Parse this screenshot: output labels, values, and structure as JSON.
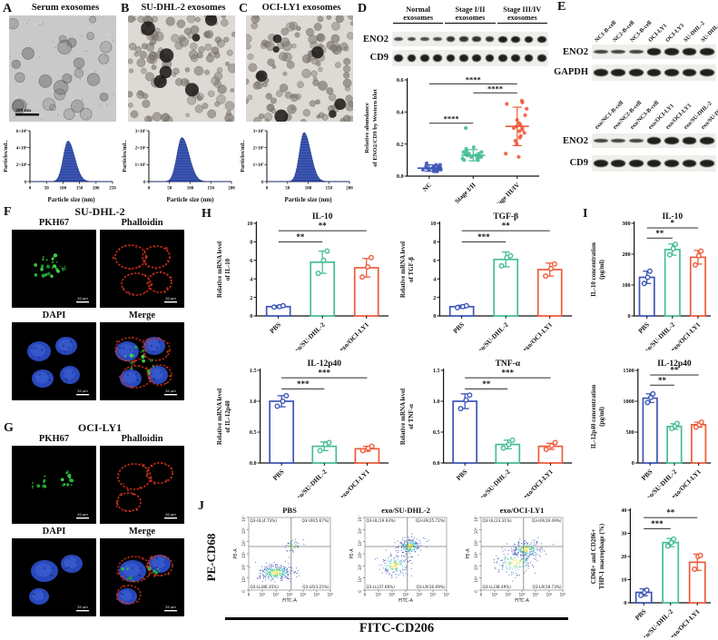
{
  "panels": {
    "A": {
      "letter": "A",
      "title": "Serum exosomes",
      "scale_bar": "200 nm"
    },
    "B": {
      "letter": "B",
      "title": "SU-DHL-2 exosomes"
    },
    "C": {
      "letter": "C",
      "title": "OCI-LY1 exosomes"
    },
    "D": {
      "letter": "D"
    },
    "E": {
      "letter": "E"
    },
    "F": {
      "letter": "F",
      "title": "SU-DHL-2",
      "image_labels": [
        "PKH67",
        "Phalloidin",
        "DAPI",
        "Merge"
      ],
      "scale_bar": "20 μm"
    },
    "G": {
      "letter": "G",
      "title": "OCI-LY1",
      "image_labels": [
        "PKH67",
        "Phalloidin",
        "DAPI",
        "Merge"
      ],
      "scale_bar": "20 μm"
    },
    "H": {
      "letter": "H"
    },
    "I": {
      "letter": "I"
    },
    "J": {
      "letter": "J"
    }
  },
  "westerns": {
    "d": {
      "groups": [
        {
          "line1": "Normal",
          "line2": "exosomes"
        },
        {
          "line1": "Stage I/II",
          "line2": "exosomes"
        },
        {
          "line1": "Stage III/IV",
          "line2": "exosomes"
        }
      ],
      "rows": [
        {
          "label": "ENO2",
          "lanes": 12,
          "profile": "d_eno2"
        },
        {
          "label": "CD9",
          "lanes": 12,
          "profile": "uniform"
        }
      ]
    },
    "e_top": {
      "lanes": [
        "NC1-B-cell",
        "NC2-B-cell",
        "NC3-B-cell",
        "OCI-LY1",
        "OCI-LY3",
        "SU-DHL-2",
        "SU-DHL-4"
      ],
      "rows": [
        {
          "label": "ENO2",
          "profile": "weak3strong4"
        },
        {
          "label": "GAPDH",
          "profile": "uniform"
        }
      ]
    },
    "e_bottom": {
      "lanes": [
        "exo/NC1-B-cell",
        "exo/NC2-B-cell",
        "exo/NC3-B-cell",
        "exo/OCI-LY1",
        "exo/OCI-LY3",
        "exo/SU-DHL-2",
        "exo/SU-DHL-4"
      ],
      "rows": [
        {
          "label": "ENO2",
          "profile": "weak3strong4"
        },
        {
          "label": "CD9",
          "profile": "uniform"
        }
      ]
    }
  },
  "colors": {
    "series": [
      "#3D55B8",
      "#45BE92",
      "#EE5B3A"
    ],
    "hist_blue": "#2B46A6",
    "sig_line": "#444444"
  },
  "j_labels": {
    "ylabel": "PE-CD68",
    "xlabel": "FITC-CD206"
  },
  "chart_data": [
    {
      "id": "hist_serum",
      "type": "area",
      "xlabel": "Particle size (nm)",
      "ylabel": "Particles/mL.",
      "xlim": [
        0,
        250
      ],
      "xticks": [
        "0",
        "50",
        "100",
        "150",
        "200",
        "250"
      ],
      "yticks": [
        "0",
        "2×10⁶",
        "4×10⁶",
        "6×10⁶"
      ],
      "peak_x": 115,
      "sigma": 14,
      "peak_frac": 0.8
    },
    {
      "id": "hist_sudhl2",
      "type": "area",
      "xlabel": "Particle size (nm)",
      "ylabel": "Particles/mL.",
      "xlim": [
        0,
        200
      ],
      "xticks": [
        "0",
        "50",
        "100",
        "150",
        "200"
      ],
      "yticks": [
        "0",
        "1×10⁷",
        "2×10⁷",
        "3×10⁷"
      ],
      "peak_x": 80,
      "sigma": 12,
      "peak_frac": 0.87
    },
    {
      "id": "hist_ocily1",
      "type": "area",
      "xlabel": "Particle size (nm)",
      "ylabel": "Particles/mL.",
      "xlim": [
        0,
        200
      ],
      "xticks": [
        "0",
        "50",
        "100",
        "150",
        "200"
      ],
      "yticks": [
        "0",
        "1×10⁷",
        "2×10⁷",
        "3×10⁷"
      ],
      "peak_x": 90,
      "sigma": 11,
      "peak_frac": 0.97
    },
    {
      "id": "d_scatter",
      "type": "scatter",
      "ylabel": [
        "Relative abundance",
        "of ENO2/CD9 by Western blot"
      ],
      "ylim": [
        0,
        0.6
      ],
      "yticks": [
        "0.0",
        "0.2",
        "0.4",
        "0.6"
      ],
      "categories": [
        "NC",
        "Stage I/II",
        "Stage III/IV"
      ],
      "means": [
        0.05,
        0.13,
        0.31
      ],
      "sds": [
        0.02,
        0.035,
        0.12
      ],
      "points": [
        [
          0.03,
          0.05,
          0.04,
          0.06,
          0.03,
          0.05,
          0.07,
          0.04,
          0.05,
          0.06,
          0.03,
          0.04,
          0.05,
          0.08,
          0.04,
          0.06,
          0.05,
          0.04,
          0.07,
          0.05
        ],
        [
          0.1,
          0.12,
          0.14,
          0.11,
          0.13,
          0.15,
          0.12,
          0.16,
          0.18,
          0.11,
          0.17,
          0.12,
          0.14,
          0.13,
          0.3,
          0.12,
          0.15,
          0.13,
          0.1,
          0.14
        ],
        [
          0.12,
          0.14,
          0.2,
          0.22,
          0.25,
          0.27,
          0.28,
          0.3,
          0.3,
          0.31,
          0.32,
          0.33,
          0.35,
          0.38,
          0.42,
          0.45,
          0.46,
          0.47,
          0.24,
          0.29
        ]
      ],
      "sigs": [
        {
          "a": 0,
          "b": 1,
          "label": "****",
          "h": 0.55
        },
        {
          "a": 1,
          "b": 2,
          "label": "****",
          "h": 0.865
        },
        {
          "a": 0,
          "b": 2,
          "label": "****",
          "h": 0.958
        }
      ]
    },
    {
      "id": "h_il10",
      "type": "bar",
      "title": "IL-10",
      "ylabel": [
        "Relative mRNA level",
        "of IL-10"
      ],
      "ylim": [
        0,
        10
      ],
      "yticks": [
        "0",
        "2",
        "4",
        "6",
        "8",
        "10"
      ],
      "categories": [
        "PBS",
        "exo/SU-DHL-2",
        "exo/OCI-LY1"
      ],
      "values": [
        1.0,
        5.8,
        5.2
      ],
      "errors": [
        0.12,
        1.2,
        1.0
      ],
      "points": [
        [
          0.95,
          1.0,
          1.1
        ],
        [
          4.6,
          6.0,
          7.0
        ],
        [
          4.2,
          5.3,
          6.3
        ]
      ],
      "sigs": [
        {
          "a": 0,
          "b": 1,
          "label": "**",
          "h": 0.8
        },
        {
          "a": 0,
          "b": 2,
          "label": "**",
          "h": 0.92
        }
      ]
    },
    {
      "id": "h_tgfb",
      "type": "bar",
      "title": "TGF-β",
      "ylabel": [
        "Relative mRNA level",
        "of TGF-β"
      ],
      "ylim": [
        0,
        10
      ],
      "yticks": [
        "0",
        "2",
        "4",
        "6",
        "8",
        "10"
      ],
      "categories": [
        "PBS",
        "exo/SU-DHL-2",
        "exo/OCI-LY1"
      ],
      "values": [
        1.0,
        6.1,
        5.0
      ],
      "errors": [
        0.15,
        0.8,
        0.7
      ],
      "points": [
        [
          0.9,
          1.0,
          1.1
        ],
        [
          5.4,
          6.3,
          6.5
        ],
        [
          4.3,
          5.1,
          5.6
        ]
      ],
      "sigs": [
        {
          "a": 0,
          "b": 1,
          "label": "***",
          "h": 0.8
        },
        {
          "a": 0,
          "b": 2,
          "label": "**",
          "h": 0.92
        }
      ]
    },
    {
      "id": "h_il12",
      "type": "bar",
      "title": "IL-12p40",
      "ylabel": [
        "Relative mRNA level",
        "of IL-12p40"
      ],
      "ylim": [
        0,
        1.5
      ],
      "yticks": [
        "0.0",
        "0.5",
        "1.0",
        "1.5"
      ],
      "categories": [
        "PBS",
        "exo/SU-DHL-2",
        "exo/OCI-LY1"
      ],
      "values": [
        1.0,
        0.27,
        0.23
      ],
      "errors": [
        0.09,
        0.07,
        0.04
      ],
      "points": [
        [
          0.92,
          1.0,
          1.09
        ],
        [
          0.2,
          0.3,
          0.33
        ],
        [
          0.2,
          0.24,
          0.27
        ]
      ],
      "sigs": [
        {
          "a": 0,
          "b": 1,
          "label": "***",
          "h": 0.8
        },
        {
          "a": 0,
          "b": 2,
          "label": "***",
          "h": 0.92
        }
      ]
    },
    {
      "id": "h_tnfa",
      "type": "bar",
      "title": "TNF-α",
      "ylabel": [
        "Relative mRNA level",
        "of TNF-α"
      ],
      "ylim": [
        0,
        1.5
      ],
      "yticks": [
        "0.0",
        "0.5",
        "1.0",
        "1.5"
      ],
      "categories": [
        "PBS",
        "exo/SU-DHL-2",
        "exo/OCI-LY1"
      ],
      "values": [
        1.0,
        0.3,
        0.27
      ],
      "errors": [
        0.12,
        0.07,
        0.05
      ],
      "points": [
        [
          0.88,
          1.02,
          1.1
        ],
        [
          0.24,
          0.3,
          0.37
        ],
        [
          0.22,
          0.28,
          0.33
        ]
      ],
      "sigs": [
        {
          "a": 0,
          "b": 1,
          "label": "**",
          "h": 0.8
        },
        {
          "a": 0,
          "b": 2,
          "label": "***",
          "h": 0.92
        }
      ]
    },
    {
      "id": "i_il10",
      "type": "bar",
      "title": "IL-10",
      "ylabel": [
        "IL-10 concentration",
        "(pg/ml)"
      ],
      "ylim": [
        0,
        300
      ],
      "yticks": [
        "0",
        "100",
        "200",
        "300"
      ],
      "categories": [
        "PBS",
        "exo/SU-DHL-2",
        "exo/OCI-LY1"
      ],
      "values": [
        125,
        215,
        190
      ],
      "errors": [
        20,
        18,
        22
      ],
      "points": [
        [
          105,
          125,
          145
        ],
        [
          198,
          218,
          232
        ],
        [
          165,
          195,
          210
        ]
      ],
      "sigs": [
        {
          "a": 0,
          "b": 1,
          "label": "**",
          "h": 0.84
        },
        {
          "a": 0,
          "b": 2,
          "label": "*",
          "h": 0.95
        }
      ]
    },
    {
      "id": "i_il12",
      "type": "bar",
      "title": "IL-12p40",
      "ylabel": [
        "IL-12p40 concentration",
        "(pg/ml)"
      ],
      "ylim": [
        0,
        1500
      ],
      "yticks": [
        "0",
        "500",
        "1000",
        "1500"
      ],
      "categories": [
        "PBS",
        "exo/SU-DHL-2",
        "exo/OCI-LY1"
      ],
      "values": [
        1050,
        590,
        620
      ],
      "errors": [
        70,
        45,
        40
      ],
      "points": [
        [
          980,
          1060,
          1120
        ],
        [
          560,
          600,
          640
        ],
        [
          580,
          620,
          660
        ]
      ],
      "sigs": [
        {
          "a": 0,
          "b": 1,
          "label": "**",
          "h": 0.84
        },
        {
          "a": 0,
          "b": 2,
          "label": "**",
          "h": 0.95
        }
      ]
    },
    {
      "id": "j_bar",
      "type": "bar",
      "title": "",
      "ylabel": [
        "CD68+ and CD206+",
        "THP-1 macrophage (%)"
      ],
      "ylim": [
        0,
        40
      ],
      "yticks": [
        "0",
        "10",
        "20",
        "30",
        "40"
      ],
      "categories": [
        "PBS",
        "exo/SU-DHL-2",
        "exo/OCI-LY1"
      ],
      "values": [
        4.5,
        26,
        17.5
      ],
      "errors": [
        1.5,
        1.8,
        3.5
      ],
      "points": [
        [
          3.2,
          4.5,
          5.5
        ],
        [
          24.5,
          26,
          27.5
        ],
        [
          14.5,
          20,
          20.5
        ]
      ],
      "sigs": [
        {
          "a": 0,
          "b": 1,
          "label": "***",
          "h": 0.8
        },
        {
          "a": 0,
          "b": 2,
          "label": "**",
          "h": 0.92
        }
      ]
    },
    {
      "id": "flow_pbs",
      "type": "flow",
      "title": "PBS",
      "quadrants": {
        "ul": "Q3-UL(4.73%)",
        "ur": "Q3-UR(5.67%)",
        "ll": "Q3-LL(86.35%)",
        "lr": "Q3-LR(3.25%)"
      },
      "yaxis": "PE-A",
      "xaxis": "FITC-A",
      "ticks": [
        "0",
        "10²",
        "10³",
        "10⁴",
        "10⁵",
        "10⁶",
        "10⁷"
      ],
      "clusters": [
        {
          "cx": 0.33,
          "cy": 0.76,
          "sx": 0.11,
          "sy": 0.055,
          "n": 300
        },
        {
          "cx": 0.54,
          "cy": 0.4,
          "sx": 0.045,
          "sy": 0.045,
          "n": 55
        }
      ]
    },
    {
      "id": "flow_sudhl2",
      "type": "flow",
      "title": "exo/SU-DHL-2",
      "quadrants": {
        "ul": "Q3-UL(19.93%)",
        "ur": "Q3-UR(25.72%)",
        "ll": "Q3-LL(37.66%)",
        "lr": "Q3-LR(16.69%)"
      },
      "yaxis": "PE-A",
      "xaxis": "FITC-A",
      "ticks": [
        "0",
        "10²",
        "10³",
        "10⁴",
        "10⁵",
        "10⁶",
        "10⁷"
      ],
      "clusters": [
        {
          "cx": 0.55,
          "cy": 0.4,
          "sx": 0.07,
          "sy": 0.055,
          "n": 230
        },
        {
          "cx": 0.36,
          "cy": 0.66,
          "sx": 0.09,
          "sy": 0.07,
          "n": 160
        }
      ]
    },
    {
      "id": "flow_ocily1",
      "type": "flow",
      "title": "exo/OCI-LY1",
      "quadrants": {
        "ul": "Q3-UL(23.31%)",
        "ur": "Q3-UR(19.49%)",
        "ll": "Q3-LL(38.49%)",
        "lr": "Q3-LR(18.73%)"
      },
      "yaxis": "PE-A",
      "xaxis": "FITC-A",
      "ticks": [
        "0",
        "10²",
        "10³",
        "10⁴",
        "10⁵",
        "10⁶",
        "10⁷"
      ],
      "clusters": [
        {
          "cx": 0.55,
          "cy": 0.44,
          "sx": 0.09,
          "sy": 0.06,
          "n": 220
        },
        {
          "cx": 0.42,
          "cy": 0.62,
          "sx": 0.12,
          "sy": 0.09,
          "n": 170
        }
      ]
    }
  ]
}
